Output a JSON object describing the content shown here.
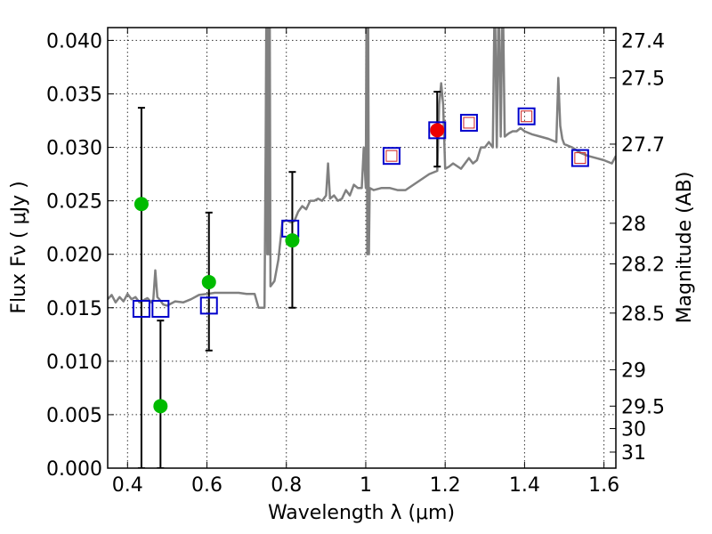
{
  "chart_data": {
    "type": "scatter",
    "xlabel": "Wavelength  λ (μm)",
    "ylabel": "Flux  Fν  ( μJy )",
    "ylabel_right": "Magnitude (AB)",
    "xlim": [
      0.35,
      1.63
    ],
    "ylim": [
      0.0,
      0.0412
    ],
    "x_ticks": [
      0.4,
      0.6,
      0.8,
      1.0,
      1.2,
      1.4,
      1.6
    ],
    "x_tick_labels": [
      "0.4",
      "0.6",
      "0.8",
      "1",
      "1.2",
      "1.4",
      "1.6"
    ],
    "y_ticks": [
      0.0,
      0.005,
      0.01,
      0.015,
      0.02,
      0.025,
      0.03,
      0.035,
      0.04
    ],
    "y_tick_labels": [
      "0.000",
      "0.005",
      "0.010",
      "0.015",
      "0.020",
      "0.025",
      "0.030",
      "0.035",
      "0.040"
    ],
    "right_ticks": [
      {
        "flux": 0.04,
        "label": "27.4"
      },
      {
        "flux": 0.0365,
        "label": "27.5"
      },
      {
        "flux": 0.0303,
        "label": "27.7"
      },
      {
        "flux": 0.0229,
        "label": "28"
      },
      {
        "flux": 0.0191,
        "label": "28.2"
      },
      {
        "flux": 0.0145,
        "label": "28.5"
      },
      {
        "flux": 0.0092,
        "label": "29"
      },
      {
        "flux": 0.0058,
        "label": "29.5"
      },
      {
        "flux": 0.0037,
        "label": "30"
      },
      {
        "flux": 0.0015,
        "label": "31"
      }
    ],
    "grid": true,
    "colors": {
      "spectrum": "#808080",
      "model_square": "#0000cc",
      "observed_square": "#cc2222",
      "green_point": "#00bb00",
      "red_point": "#ee0000",
      "errorbar": "#000000"
    },
    "series": [
      {
        "name": "model spectrum",
        "kind": "line",
        "x": [
          0.35,
          0.36,
          0.37,
          0.38,
          0.39,
          0.4,
          0.41,
          0.42,
          0.43,
          0.44,
          0.45,
          0.46,
          0.465,
          0.47,
          0.475,
          0.48,
          0.49,
          0.5,
          0.52,
          0.54,
          0.56,
          0.58,
          0.6,
          0.62,
          0.65,
          0.68,
          0.7,
          0.72,
          0.73,
          0.74,
          0.745,
          0.748,
          0.75,
          0.752,
          0.754,
          0.756,
          0.758,
          0.76,
          0.77,
          0.78,
          0.79,
          0.8,
          0.81,
          0.82,
          0.83,
          0.84,
          0.85,
          0.86,
          0.87,
          0.88,
          0.89,
          0.9,
          0.905,
          0.91,
          0.92,
          0.93,
          0.94,
          0.95,
          0.96,
          0.97,
          0.98,
          0.99,
          0.995,
          1.0,
          1.002,
          1.004,
          1.006,
          1.008,
          1.01,
          1.02,
          1.04,
          1.06,
          1.08,
          1.1,
          1.12,
          1.14,
          1.16,
          1.18,
          1.185,
          1.19,
          1.195,
          1.2,
          1.21,
          1.22,
          1.24,
          1.26,
          1.27,
          1.28,
          1.29,
          1.3,
          1.31,
          1.32,
          1.325,
          1.33,
          1.335,
          1.34,
          1.345,
          1.35,
          1.36,
          1.37,
          1.38,
          1.39,
          1.4,
          1.42,
          1.44,
          1.46,
          1.48,
          1.485,
          1.49,
          1.495,
          1.5,
          1.52,
          1.54,
          1.56,
          1.58,
          1.6,
          1.62,
          1.63
        ],
        "y": [
          0.0158,
          0.0162,
          0.0155,
          0.016,
          0.0156,
          0.0163,
          0.0158,
          0.016,
          0.0155,
          0.0157,
          0.0159,
          0.0155,
          0.0158,
          0.0185,
          0.016,
          0.0158,
          0.0153,
          0.0152,
          0.0156,
          0.0155,
          0.0158,
          0.0162,
          0.0163,
          0.0164,
          0.0164,
          0.0164,
          0.0163,
          0.0163,
          0.015,
          0.015,
          0.015,
          0.03,
          0.045,
          0.02,
          0.045,
          0.02,
          0.045,
          0.017,
          0.0175,
          0.0195,
          0.023,
          0.0232,
          0.023,
          0.0231,
          0.024,
          0.0245,
          0.0242,
          0.025,
          0.025,
          0.0252,
          0.025,
          0.0255,
          0.0285,
          0.0252,
          0.0255,
          0.025,
          0.0252,
          0.026,
          0.0255,
          0.0265,
          0.0262,
          0.0262,
          0.03,
          0.0262,
          0.045,
          0.02,
          0.045,
          0.02,
          0.0262,
          0.026,
          0.0262,
          0.0262,
          0.026,
          0.026,
          0.0265,
          0.027,
          0.0275,
          0.0278,
          0.034,
          0.036,
          0.034,
          0.028,
          0.0282,
          0.0285,
          0.028,
          0.029,
          0.0285,
          0.0288,
          0.03,
          0.03,
          0.0305,
          0.03,
          0.045,
          0.03,
          0.045,
          0.031,
          0.045,
          0.031,
          0.0313,
          0.0315,
          0.0315,
          0.0318,
          0.0315,
          0.0312,
          0.031,
          0.0308,
          0.0305,
          0.0365,
          0.032,
          0.0308,
          0.0303,
          0.03,
          0.0295,
          0.0292,
          0.029,
          0.0288,
          0.0285,
          0.0292
        ]
      },
      {
        "name": "model photometry",
        "kind": "open-square-large",
        "x": [
          0.435,
          0.483,
          0.605,
          0.81,
          1.065,
          1.18,
          1.26,
          1.405,
          1.54
        ],
        "y": [
          0.0149,
          0.0149,
          0.0152,
          0.0224,
          0.0292,
          0.0316,
          0.0323,
          0.0329,
          0.029
        ]
      },
      {
        "name": "observed photometry",
        "kind": "open-square-small",
        "x": [
          1.065,
          1.26,
          1.405,
          1.54
        ],
        "y": [
          0.0292,
          0.0323,
          0.0329,
          0.029
        ]
      },
      {
        "name": "detections",
        "kind": "filled-circle-green",
        "x": [
          0.435,
          0.483,
          0.605,
          0.815
        ],
        "y": [
          0.0247,
          0.0058,
          0.0174,
          0.0213
        ],
        "yerr_low": [
          0.0247,
          0.0058,
          0.0064,
          0.0063
        ],
        "yerr_high": [
          0.009,
          0.008,
          0.0065,
          0.0064
        ]
      },
      {
        "name": "highlighted detection",
        "kind": "filled-circle-red",
        "x": [
          1.18
        ],
        "y": [
          0.0316
        ],
        "yerr_low": [
          0.0034
        ],
        "yerr_high": [
          0.0036
        ]
      }
    ]
  }
}
